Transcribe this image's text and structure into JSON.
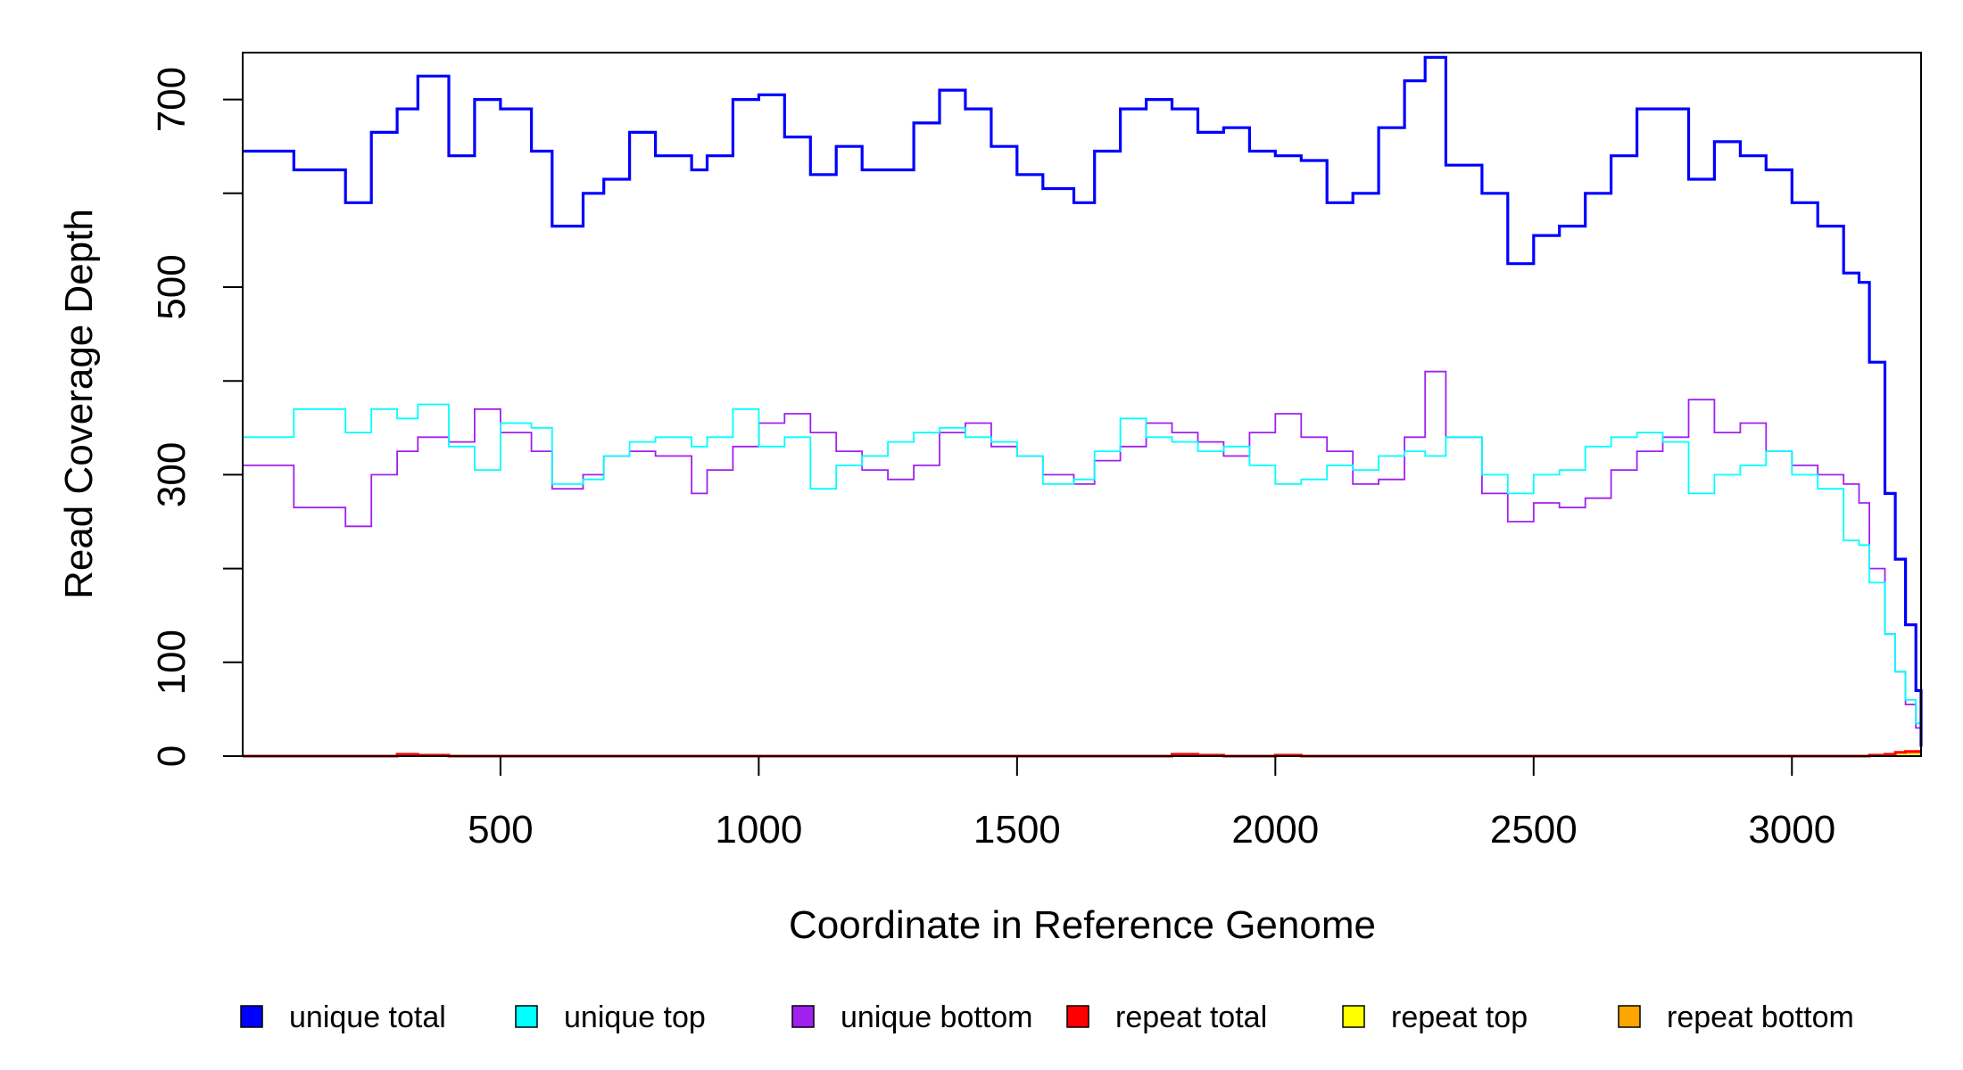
{
  "chart_data": {
    "type": "line",
    "title": "",
    "xlabel": "Coordinate in Reference Genome",
    "ylabel": "Read Coverage Depth",
    "xlim": [
      1,
      3250
    ],
    "ylim": [
      0,
      750
    ],
    "x_ticks": [
      500,
      1000,
      1500,
      2000,
      2500,
      3000
    ],
    "y_ticks": [
      0,
      100,
      200,
      300,
      400,
      500,
      600,
      700
    ],
    "y_tick_labels": [
      "0",
      "100",
      "",
      "300",
      "",
      "500",
      "",
      "700"
    ],
    "grid": false,
    "legend_position": "bottom",
    "x": [
      1,
      100,
      200,
      250,
      300,
      340,
      400,
      450,
      500,
      560,
      600,
      660,
      700,
      750,
      800,
      870,
      900,
      950,
      1000,
      1050,
      1100,
      1150,
      1200,
      1250,
      1300,
      1350,
      1400,
      1450,
      1500,
      1550,
      1610,
      1650,
      1700,
      1750,
      1800,
      1850,
      1900,
      1950,
      2000,
      2050,
      2100,
      2150,
      2200,
      2250,
      2290,
      2330,
      2400,
      2450,
      2500,
      2550,
      2600,
      2650,
      2700,
      2750,
      2800,
      2850,
      2900,
      2950,
      3000,
      3050,
      3100,
      3130,
      3150,
      3180,
      3200,
      3220,
      3240,
      3250
    ],
    "series": [
      {
        "name": "unique total",
        "color": "#0000FF",
        "width": 3.2,
        "values": [
          645,
          625,
          590,
          665,
          690,
          725,
          640,
          700,
          690,
          645,
          565,
          600,
          615,
          665,
          640,
          625,
          640,
          700,
          705,
          660,
          620,
          650,
          625,
          625,
          675,
          710,
          690,
          650,
          620,
          605,
          590,
          645,
          690,
          700,
          690,
          665,
          670,
          645,
          640,
          635,
          590,
          600,
          670,
          720,
          745,
          630,
          600,
          525,
          555,
          565,
          600,
          640,
          690,
          690,
          615,
          655,
          640,
          625,
          590,
          565,
          515,
          505,
          420,
          280,
          210,
          140,
          70,
          10
        ]
      },
      {
        "name": "unique top",
        "color": "#00FFFF",
        "width": 1.8,
        "values": [
          340,
          370,
          345,
          370,
          360,
          375,
          330,
          305,
          355,
          350,
          290,
          295,
          320,
          335,
          340,
          330,
          340,
          370,
          330,
          340,
          285,
          310,
          320,
          335,
          345,
          350,
          340,
          335,
          320,
          290,
          295,
          325,
          360,
          340,
          335,
          325,
          330,
          310,
          290,
          295,
          310,
          305,
          320,
          325,
          320,
          340,
          300,
          280,
          300,
          305,
          330,
          340,
          345,
          335,
          280,
          300,
          310,
          325,
          300,
          285,
          230,
          225,
          185,
          130,
          90,
          60,
          35,
          20
        ]
      },
      {
        "name": "unique bottom",
        "color": "#A020F0",
        "width": 1.8,
        "values": [
          310,
          265,
          245,
          300,
          325,
          340,
          335,
          370,
          345,
          325,
          285,
          300,
          320,
          325,
          320,
          280,
          305,
          330,
          355,
          365,
          345,
          325,
          305,
          295,
          310,
          345,
          355,
          330,
          320,
          300,
          290,
          315,
          330,
          355,
          345,
          335,
          320,
          345,
          365,
          340,
          325,
          290,
          295,
          340,
          410,
          340,
          280,
          250,
          270,
          265,
          275,
          305,
          325,
          340,
          380,
          345,
          355,
          325,
          310,
          300,
          290,
          270,
          200,
          130,
          90,
          55,
          30,
          15
        ]
      },
      {
        "name": "repeat total",
        "color": "#FF0000",
        "width": 3,
        "values": [
          0,
          0,
          0,
          0,
          2,
          1,
          0,
          0,
          0,
          0,
          0,
          0,
          0,
          0,
          0,
          0,
          0,
          0,
          0,
          0,
          0,
          0,
          0,
          0,
          0,
          0,
          0,
          0,
          0,
          0,
          0,
          0,
          0,
          0,
          2,
          1,
          0,
          0,
          1,
          0,
          0,
          0,
          0,
          0,
          0,
          0,
          0,
          0,
          0,
          0,
          0,
          0,
          0,
          0,
          0,
          0,
          0,
          0,
          0,
          0,
          0,
          0,
          1,
          2,
          4,
          5,
          5,
          5
        ]
      },
      {
        "name": "repeat top",
        "color": "#FFFF00",
        "width": 1.5,
        "values": [
          0,
          0,
          0,
          0,
          1,
          0,
          0,
          0,
          0,
          0,
          0,
          0,
          0,
          0,
          0,
          0,
          0,
          0,
          0,
          0,
          0,
          0,
          0,
          0,
          0,
          0,
          0,
          0,
          0,
          0,
          0,
          0,
          0,
          0,
          1,
          0,
          0,
          0,
          0,
          0,
          0,
          0,
          0,
          0,
          0,
          0,
          0,
          0,
          0,
          0,
          0,
          0,
          0,
          0,
          0,
          0,
          0,
          0,
          0,
          0,
          0,
          0,
          0,
          1,
          2,
          2,
          2,
          2
        ]
      },
      {
        "name": "repeat bottom",
        "color": "#FFA500",
        "width": 1.5,
        "values": [
          0,
          0,
          0,
          0,
          1,
          1,
          0,
          0,
          0,
          0,
          0,
          0,
          0,
          0,
          0,
          0,
          0,
          0,
          0,
          0,
          0,
          0,
          0,
          0,
          0,
          0,
          0,
          0,
          0,
          0,
          0,
          0,
          0,
          0,
          1,
          1,
          0,
          0,
          1,
          0,
          0,
          0,
          0,
          0,
          0,
          0,
          0,
          0,
          0,
          0,
          0,
          0,
          0,
          0,
          0,
          0,
          0,
          0,
          0,
          0,
          0,
          0,
          1,
          1,
          2,
          3,
          3,
          3
        ]
      }
    ]
  }
}
